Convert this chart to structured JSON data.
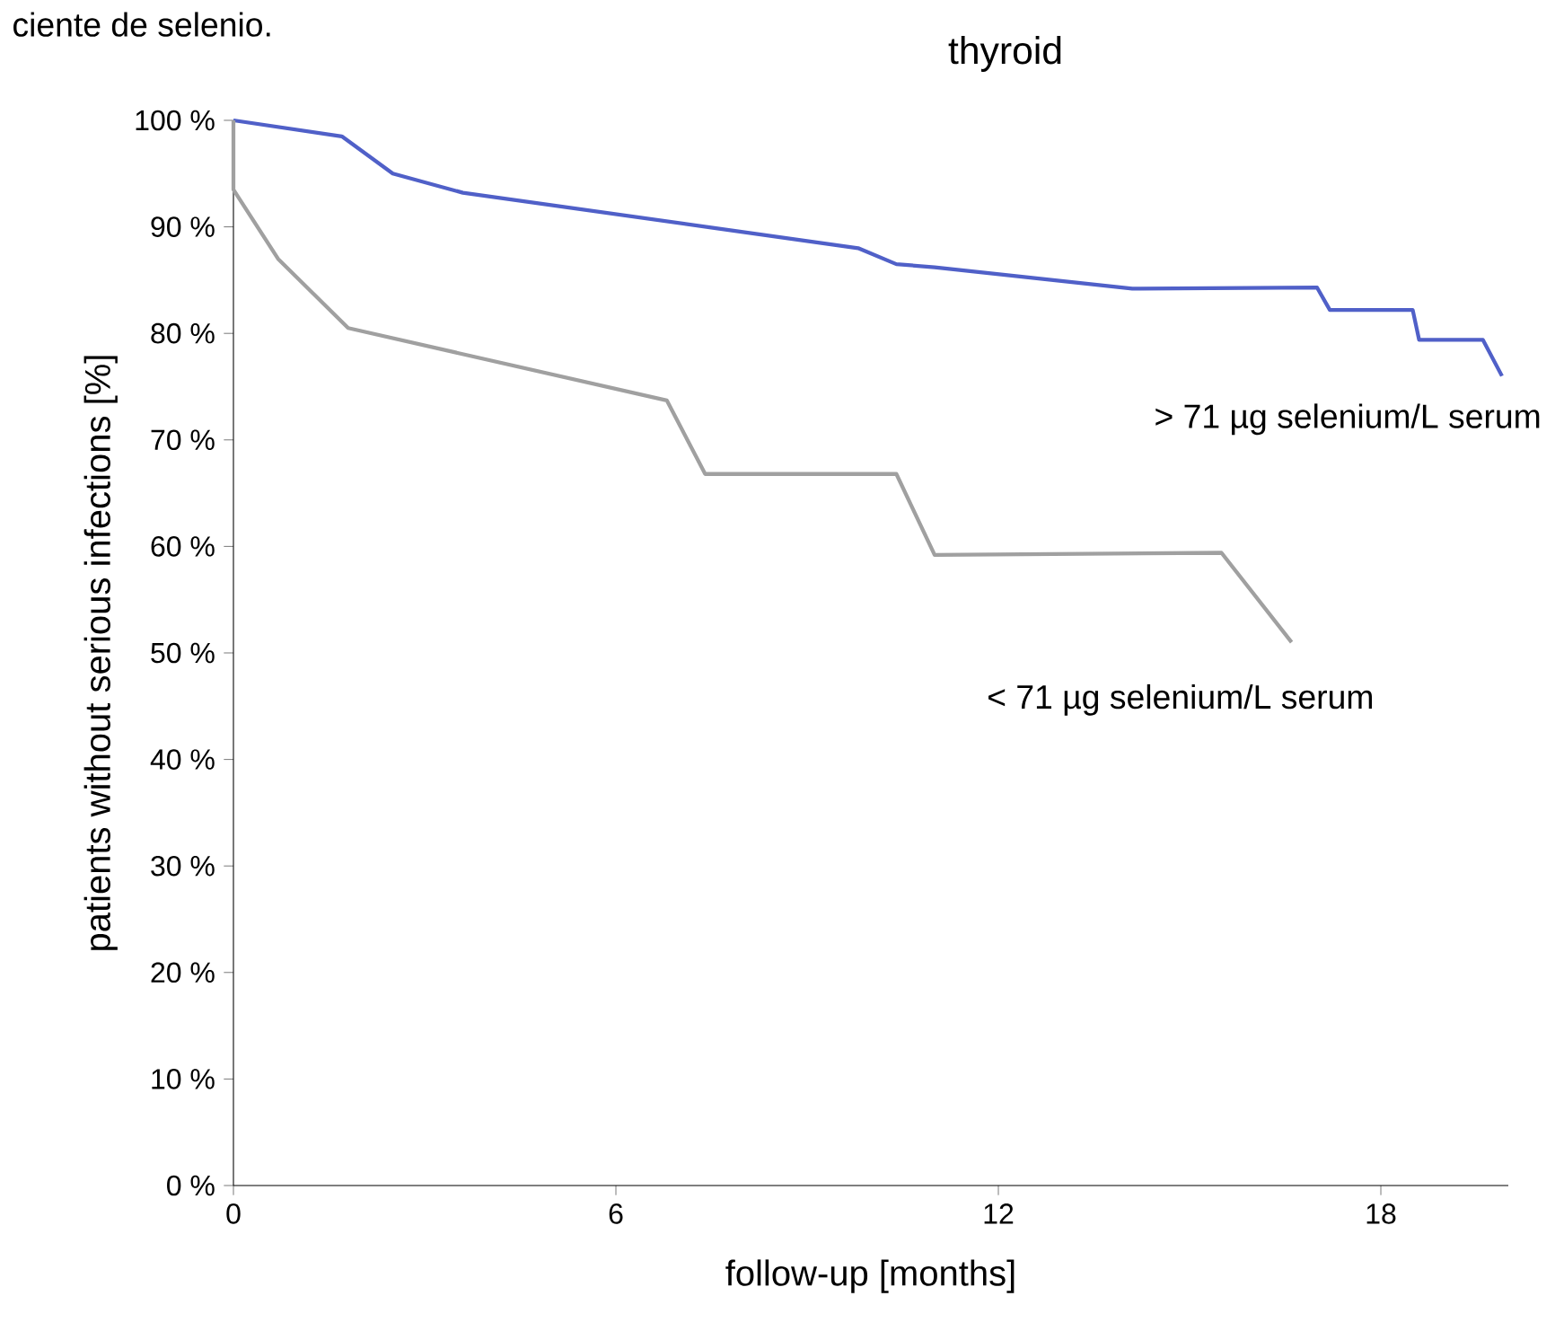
{
  "chart_data": {
    "type": "line",
    "title": "thyroid",
    "xlabel": "follow-up [months]",
    "ylabel": "patients without serious infections   [%]",
    "annotations": [
      "ciente de selenio."
    ],
    "xlim": [
      0,
      20
    ],
    "ylim": [
      0,
      100
    ],
    "xticks": [
      0,
      6,
      12,
      18
    ],
    "yticks": [
      {
        "value": 0,
        "label": "0 %"
      },
      {
        "value": 10,
        "label": "10 %"
      },
      {
        "value": 20,
        "label": "20 %"
      },
      {
        "value": 30,
        "label": "30 %"
      },
      {
        "value": 40,
        "label": "40 %"
      },
      {
        "value": 50,
        "label": "50 %"
      },
      {
        "value": 60,
        "label": "60 %"
      },
      {
        "value": 70,
        "label": "70 %"
      },
      {
        "value": 80,
        "label": "80 %"
      },
      {
        "value": 90,
        "label": "90 %"
      },
      {
        "value": 100,
        "label": "100 %"
      }
    ],
    "grid": false,
    "legend": false,
    "marker": "none",
    "line_style": "solid",
    "series": [
      {
        "name": "> 71 µg selenium/L serum",
        "color": "#5060c8",
        "x": [
          0,
          1.7,
          2.5,
          3.6,
          9.8,
          10.4,
          11,
          14.1,
          17,
          17.2,
          18.5,
          18.6,
          19.6,
          19.9
        ],
        "values": [
          100,
          98.5,
          95,
          93.2,
          88,
          86.5,
          86.2,
          84.2,
          84.3,
          82.2,
          82.2,
          79.4,
          79.4,
          76
        ]
      },
      {
        "name": "< 71 µg selenium/L serum",
        "color": "#a0a0a0",
        "x": [
          0,
          0,
          0.7,
          1.8,
          6.8,
          7.4,
          10.4,
          11,
          15.5,
          16.6
        ],
        "values": [
          100,
          93.5,
          87,
          80.5,
          73.7,
          66.8,
          66.8,
          59.2,
          59.4,
          51
        ]
      }
    ]
  }
}
